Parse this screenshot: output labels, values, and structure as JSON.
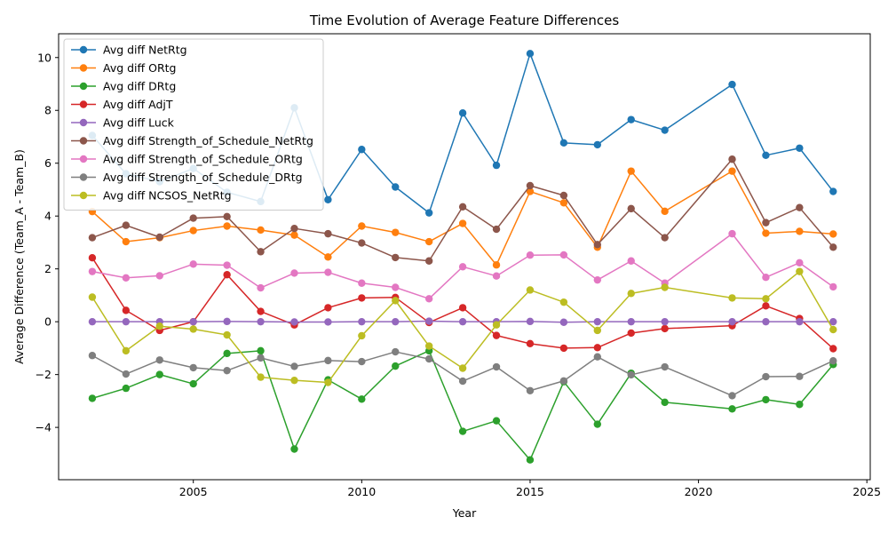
{
  "chart_data": {
    "type": "line",
    "title": "Time Evolution of Average Feature Differences",
    "xlabel": "Year",
    "ylabel": "Average Difference (Team_A - Team_B)",
    "xlim": [
      2001.0,
      2025.1
    ],
    "ylim": [
      -5.98,
      10.9
    ],
    "xticks": [
      2005,
      2010,
      2015,
      2020,
      2025
    ],
    "yticks": [
      -4,
      -2,
      0,
      2,
      4,
      6,
      8,
      10
    ],
    "grid": false,
    "legend_position": "upper-left",
    "x": [
      2002,
      2003,
      2004,
      2005,
      2006,
      2007,
      2008,
      2009,
      2010,
      2011,
      2012,
      2013,
      2014,
      2015,
      2016,
      2017,
      2018,
      2019,
      2021,
      2022,
      2023,
      2024
    ],
    "series": [
      {
        "name": "Avg diff NetRtg",
        "color": "#1f77b4",
        "values": [
          7.05,
          5.6,
          5.3,
          5.8,
          4.9,
          4.55,
          8.1,
          4.62,
          6.52,
          5.1,
          4.12,
          7.9,
          5.92,
          10.15,
          6.77,
          6.7,
          7.65,
          7.25,
          8.98,
          6.3,
          6.57,
          4.93
        ]
      },
      {
        "name": "Avg diff ORtg",
        "color": "#ff7f0e",
        "values": [
          4.17,
          3.03,
          3.18,
          3.45,
          3.62,
          3.47,
          3.28,
          2.45,
          3.62,
          3.38,
          3.03,
          3.72,
          2.15,
          4.93,
          4.5,
          2.82,
          5.7,
          4.18,
          5.7,
          3.35,
          3.42,
          3.32
        ]
      },
      {
        "name": "Avg diff DRtg",
        "color": "#2ca02c",
        "values": [
          -2.9,
          -2.52,
          -2.0,
          -2.35,
          -1.2,
          -1.1,
          -4.82,
          -2.2,
          -2.93,
          -1.68,
          -1.1,
          -4.15,
          -3.75,
          -5.23,
          -2.27,
          -3.88,
          -1.95,
          -3.05,
          -3.3,
          -2.95,
          -3.13,
          -1.62
        ]
      },
      {
        "name": "Avg diff AdjT",
        "color": "#d62728",
        "values": [
          2.42,
          0.43,
          -0.33,
          0.0,
          1.78,
          0.39,
          -0.12,
          0.53,
          0.9,
          0.92,
          -0.03,
          0.53,
          -0.52,
          -0.83,
          -1.0,
          -0.98,
          -0.43,
          -0.26,
          -0.15,
          0.6,
          0.12,
          -1.02
        ]
      },
      {
        "name": "Avg diff Luck",
        "color": "#9467bd",
        "values": [
          0.0,
          0.0,
          0.0,
          0.0,
          0.01,
          0.0,
          -0.01,
          -0.01,
          0.0,
          0.0,
          0.02,
          0.0,
          0.0,
          0.01,
          -0.02,
          0.0,
          0.0,
          0.0,
          0.0,
          0.0,
          0.0,
          0.0
        ]
      },
      {
        "name": "Avg diff Strength_of_Schedule_NetRtg",
        "color": "#8c564b",
        "values": [
          3.18,
          3.65,
          3.2,
          3.92,
          3.98,
          2.65,
          3.53,
          3.33,
          2.98,
          2.43,
          2.3,
          4.35,
          3.5,
          5.15,
          4.78,
          2.92,
          4.28,
          3.18,
          6.15,
          3.75,
          4.32,
          2.82
        ]
      },
      {
        "name": "Avg diff Strength_of_Schedule_ORtg",
        "color": "#e377c2",
        "values": [
          1.9,
          1.66,
          1.74,
          2.18,
          2.14,
          1.28,
          1.84,
          1.87,
          1.46,
          1.3,
          0.87,
          2.08,
          1.73,
          2.52,
          2.53,
          1.58,
          2.3,
          1.46,
          3.33,
          1.68,
          2.23,
          1.32
        ]
      },
      {
        "name": "Avg diff Strength_of_Schedule_DRtg",
        "color": "#7f7f7f",
        "values": [
          -1.28,
          -1.98,
          -1.45,
          -1.74,
          -1.85,
          -1.37,
          -1.69,
          -1.47,
          -1.51,
          -1.14,
          -1.41,
          -2.25,
          -1.71,
          -2.61,
          -2.24,
          -1.33,
          -2.01,
          -1.71,
          -2.8,
          -2.08,
          -2.07,
          -1.48
        ]
      },
      {
        "name": "Avg diff NCSOS_NetRtg",
        "color": "#bcbd22",
        "values": [
          0.93,
          -1.1,
          -0.17,
          -0.28,
          -0.5,
          -2.1,
          -2.22,
          -2.3,
          -0.53,
          0.8,
          -0.92,
          -1.76,
          -0.12,
          1.2,
          0.74,
          -0.33,
          1.07,
          1.3,
          0.9,
          0.87,
          1.9,
          -0.3
        ]
      }
    ]
  }
}
